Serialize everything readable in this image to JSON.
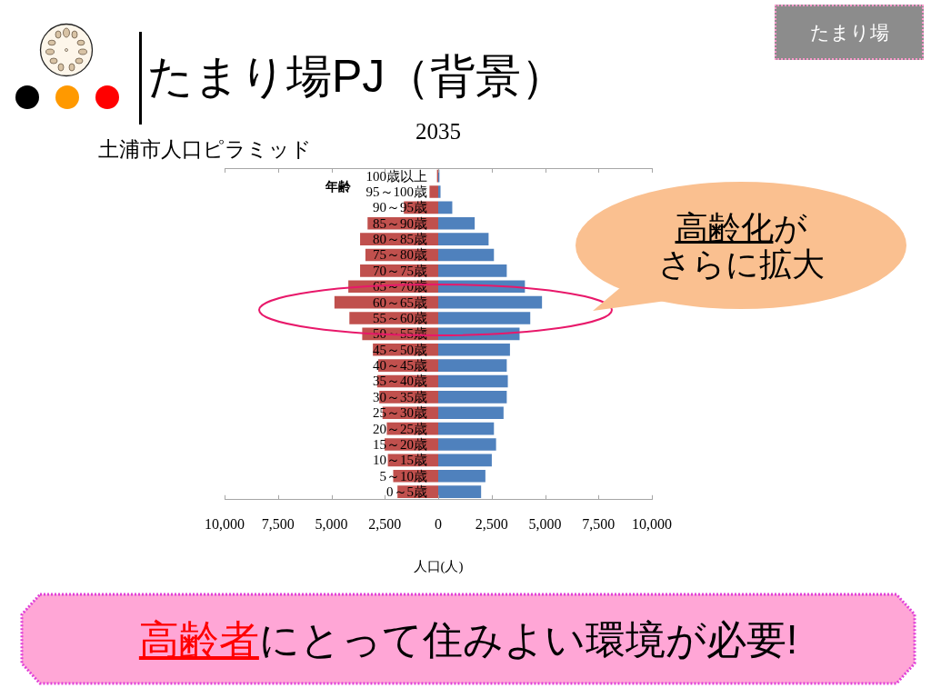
{
  "chart_data": {
    "type": "bar",
    "title": "2035",
    "subtitle": "土浦市人口ピラミッド",
    "xlabel": "人口(人)",
    "ylabel": "年齢",
    "annotations": [
      "たまり場PJ（背景）",
      "たまり場",
      "高齢化",
      "が",
      "さらに拡大",
      "高齢者",
      "にとって住みよい環境が必要!"
    ],
    "orientation": "horizontal",
    "stacked": true,
    "categories": [
      "100歳以上",
      "95～100歳",
      "90～95歳",
      "85～90歳",
      "80～85歳",
      "75～80歳",
      "70～75歳",
      "65～70歳",
      "60～65歳",
      "55～60歳",
      "50～55歳",
      "45～50歳",
      "40～45歳",
      "35～40歳",
      "30～35歳",
      "25～30歳",
      "20～25歳",
      "15～20歳",
      "10～15歳",
      "5～10歳",
      "0～5歳"
    ],
    "series": [
      {
        "color": "#c0504d",
        "values": [
          -100,
          -450,
          -1650,
          -3350,
          -3700,
          -3450,
          -3700,
          -4250,
          -4900,
          -4200,
          -3600,
          -3100,
          -2850,
          -2900,
          -2800,
          -2650,
          -2450,
          -2550,
          -2400,
          -2150,
          -1950
        ]
      },
      {
        "color": "#4f81bd",
        "values": [
          100,
          150,
          700,
          1750,
          2400,
          2650,
          3250,
          4100,
          4900,
          4350,
          3850,
          3400,
          3250,
          3300,
          3250,
          3100,
          2650,
          2750,
          2550,
          2250,
          2050
        ]
      }
    ],
    "xlim": [
      -10000,
      10000
    ],
    "xticks": [
      {
        "value": -10000,
        "label": "10,000"
      },
      {
        "value": -7500,
        "label": "7,500"
      },
      {
        "value": -5000,
        "label": "5,000"
      },
      {
        "value": -2500,
        "label": "2,500"
      },
      0,
      {
        "value": 2500,
        "label": "2,500"
      },
      {
        "value": 5000,
        "label": "5,000"
      },
      {
        "value": 7500,
        "label": "7,500"
      },
      {
        "value": 10000,
        "label": "10,000"
      }
    ]
  }
}
